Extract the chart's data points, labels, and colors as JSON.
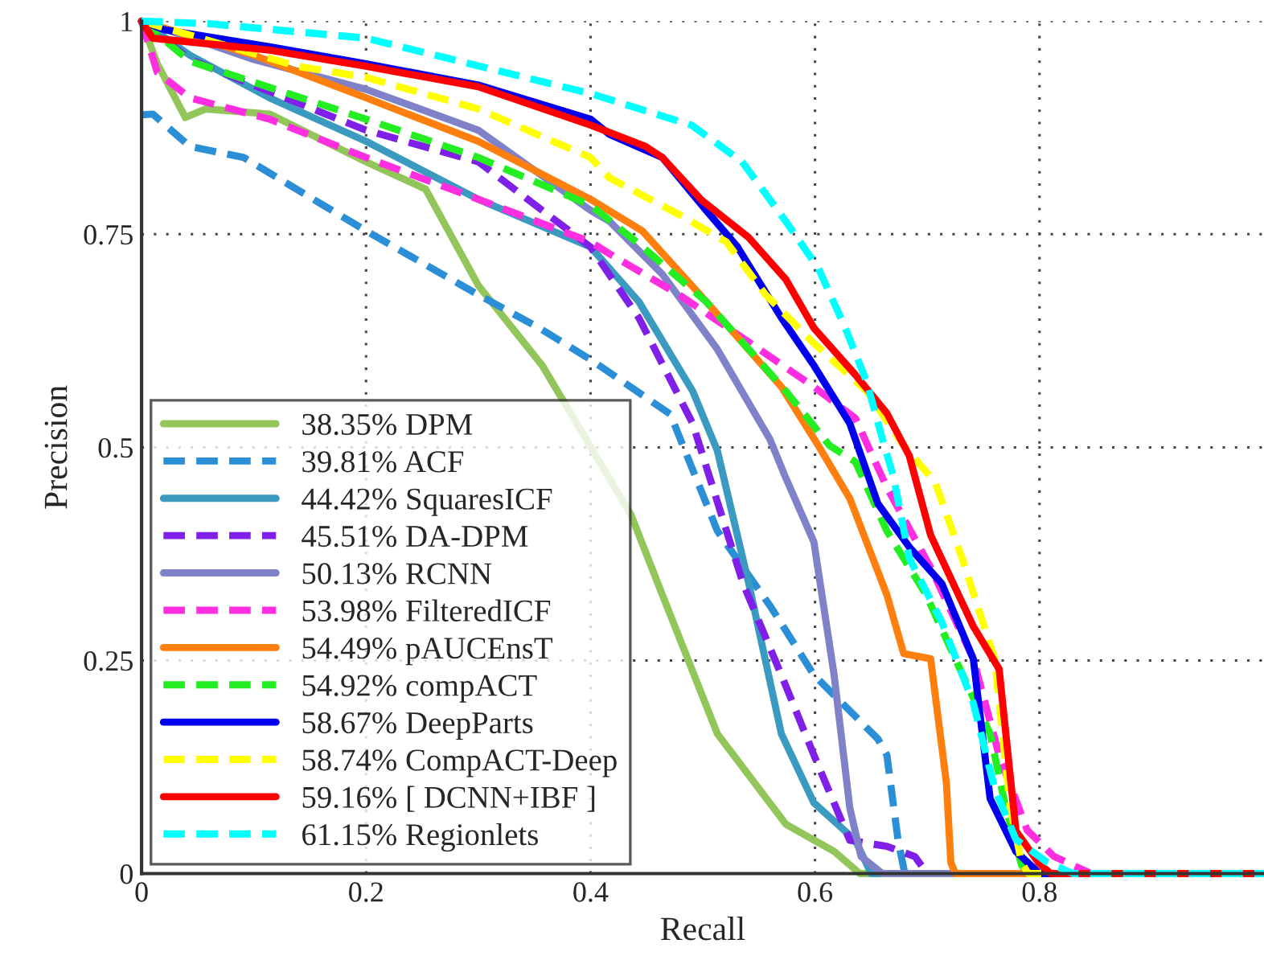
{
  "chart_data": {
    "type": "line",
    "xlabel": "Recall",
    "ylabel": "Precision",
    "xlim": [
      0,
      1
    ],
    "xticks": [
      0,
      0.2,
      0.4,
      0.6,
      0.8
    ],
    "ylim": [
      0,
      1
    ],
    "yticks": [
      0,
      0.25,
      0.5,
      0.75,
      1
    ],
    "grid": true,
    "legend": "bottom left",
    "marker": "none",
    "series": [
      {
        "name": "38.35% DPM",
        "color": "#92c65a",
        "line_style": "solid",
        "x": [
          0,
          0.014,
          0.039,
          0.057,
          0.114,
          0.2,
          0.253,
          0.3,
          0.357,
          0.436,
          0.464,
          0.513,
          0.574,
          0.617,
          0.64,
          1
        ],
        "values": [
          1,
          0.95,
          0.887,
          0.897,
          0.891,
          0.835,
          0.803,
          0.69,
          0.596,
          0.421,
          0.327,
          0.164,
          0.058,
          0.026,
          0,
          0
        ]
      },
      {
        "name": "39.81% ACF",
        "color": "#2b8fd8",
        "line_style": "dashed",
        "x": [
          0,
          0.01,
          0.043,
          0.091,
          0.2,
          0.3,
          0.353,
          0.4,
          0.471,
          0.513,
          0.56,
          0.599,
          0.656,
          0.664,
          0.674,
          0.68,
          1
        ],
        "values": [
          0.89,
          0.891,
          0.853,
          0.84,
          0.754,
          0.679,
          0.641,
          0.603,
          0.539,
          0.402,
          0.314,
          0.233,
          0.158,
          0.139,
          0.039,
          0,
          0
        ]
      },
      {
        "name": "44.42% SquaresICF",
        "color": "#3b9ac0",
        "line_style": "solid",
        "x": [
          0,
          0.043,
          0.114,
          0.2,
          0.3,
          0.4,
          0.443,
          0.491,
          0.513,
          0.541,
          0.57,
          0.599,
          0.636,
          0.65,
          1
        ],
        "values": [
          1,
          0.96,
          0.91,
          0.859,
          0.791,
          0.735,
          0.671,
          0.566,
          0.496,
          0.34,
          0.164,
          0.083,
          0.039,
          0,
          0
        ]
      },
      {
        "name": "45.51% DA-DPM",
        "color": "#7f1fe8",
        "line_style": "dashed",
        "x": [
          0,
          0.043,
          0.2,
          0.3,
          0.4,
          0.443,
          0.491,
          0.536,
          0.57,
          0.599,
          0.631,
          0.664,
          0.689,
          0.7,
          1
        ],
        "values": [
          1,
          0.955,
          0.872,
          0.835,
          0.735,
          0.652,
          0.528,
          0.34,
          0.233,
          0.139,
          0.039,
          0.032,
          0.02,
          0,
          0
        ]
      },
      {
        "name": "50.13% RCNN",
        "color": "#7f82c8",
        "line_style": "solid",
        "x": [
          0,
          0.1,
          0.2,
          0.3,
          0.4,
          0.417,
          0.464,
          0.513,
          0.56,
          0.574,
          0.599,
          0.617,
          0.631,
          0.641,
          0.66,
          1
        ],
        "values": [
          1,
          0.955,
          0.92,
          0.872,
          0.778,
          0.765,
          0.703,
          0.615,
          0.509,
          0.464,
          0.389,
          0.233,
          0.077,
          0.02,
          0,
          0
        ]
      },
      {
        "name": "53.98% FilteredICF",
        "color": "#ff2ee0",
        "line_style": "dashed",
        "x": [
          0,
          0.014,
          0.043,
          0.114,
          0.2,
          0.3,
          0.4,
          0.417,
          0.479,
          0.536,
          0.599,
          0.636,
          0.664,
          0.703,
          0.741,
          0.764,
          0.789,
          0.813,
          0.846,
          1
        ],
        "values": [
          1,
          0.94,
          0.91,
          0.885,
          0.84,
          0.791,
          0.741,
          0.727,
          0.679,
          0.628,
          0.571,
          0.534,
          0.453,
          0.359,
          0.252,
          0.139,
          0.051,
          0.02,
          0,
          0
        ]
      },
      {
        "name": "54.49% pAUCEnsT",
        "color": "#ff7f0e",
        "line_style": "solid",
        "x": [
          0,
          0.1,
          0.2,
          0.3,
          0.4,
          0.446,
          0.503,
          0.57,
          0.603,
          0.631,
          0.664,
          0.679,
          0.703,
          0.717,
          0.721,
          0.725,
          1
        ],
        "values": [
          1,
          0.96,
          0.91,
          0.859,
          0.791,
          0.754,
          0.671,
          0.571,
          0.502,
          0.44,
          0.327,
          0.258,
          0.252,
          0.107,
          0.013,
          0,
          0
        ]
      },
      {
        "name": "54.92% compACT",
        "color": "#22ee22",
        "line_style": "dashed",
        "x": [
          0,
          0.043,
          0.2,
          0.3,
          0.4,
          0.441,
          0.503,
          0.541,
          0.574,
          0.613,
          0.636,
          0.664,
          0.699,
          0.727,
          0.756,
          0.77,
          0.784,
          0.79,
          1
        ],
        "values": [
          1,
          0.953,
          0.885,
          0.84,
          0.784,
          0.741,
          0.671,
          0.615,
          0.566,
          0.502,
          0.483,
          0.402,
          0.327,
          0.246,
          0.164,
          0.077,
          0.01,
          0,
          0
        ]
      },
      {
        "name": "58.67% DeepParts",
        "color": "#0000ee",
        "line_style": "solid",
        "x": [
          0,
          0.02,
          0.114,
          0.2,
          0.3,
          0.4,
          0.417,
          0.464,
          0.503,
          0.531,
          0.57,
          0.599,
          0.631,
          0.656,
          0.684,
          0.713,
          0.741,
          0.756,
          0.779,
          0.8,
          1
        ],
        "values": [
          1,
          0.99,
          0.97,
          0.95,
          0.925,
          0.885,
          0.867,
          0.84,
          0.778,
          0.735,
          0.652,
          0.596,
          0.528,
          0.434,
          0.383,
          0.34,
          0.252,
          0.088,
          0.026,
          0,
          0
        ]
      },
      {
        "name": "58.74% CompACT-Deep",
        "color": "#ffff00",
        "line_style": "dashed",
        "x": [
          0,
          0.139,
          0.2,
          0.3,
          0.4,
          0.417,
          0.479,
          0.521,
          0.556,
          0.599,
          0.646,
          0.679,
          0.707,
          0.731,
          0.76,
          0.774,
          0.784,
          0.79,
          1
        ],
        "values": [
          1,
          0.947,
          0.934,
          0.897,
          0.84,
          0.816,
          0.773,
          0.741,
          0.679,
          0.622,
          0.566,
          0.502,
          0.459,
          0.37,
          0.252,
          0.077,
          0.013,
          0,
          0
        ]
      },
      {
        "name": "59.16% [ DCNN+IBF ]",
        "color": "#ff0000",
        "line_style": "solid",
        "x": [
          0,
          0.01,
          0.114,
          0.2,
          0.3,
          0.4,
          0.449,
          0.464,
          0.499,
          0.541,
          0.574,
          0.599,
          0.636,
          0.664,
          0.684,
          0.703,
          0.741,
          0.764,
          0.779,
          0.799,
          0.81,
          1
        ],
        "values": [
          1,
          0.98,
          0.966,
          0.947,
          0.923,
          0.878,
          0.853,
          0.84,
          0.79,
          0.746,
          0.697,
          0.64,
          0.585,
          0.54,
          0.49,
          0.397,
          0.29,
          0.24,
          0.05,
          0.013,
          0,
          0
        ]
      },
      {
        "name": "61.15% Regionlets",
        "color": "#00ffff",
        "line_style": "dashed",
        "x": [
          0,
          0.06,
          0.2,
          0.4,
          0.49,
          0.535,
          0.574,
          0.603,
          0.627,
          0.646,
          0.66,
          0.67,
          0.684,
          0.713,
          0.741,
          0.76,
          0.779,
          0.807,
          0.83,
          1
        ],
        "values": [
          1,
          0.997,
          0.98,
          0.915,
          0.878,
          0.835,
          0.765,
          0.71,
          0.64,
          0.577,
          0.51,
          0.465,
          0.37,
          0.295,
          0.2,
          0.1,
          0.04,
          0.013,
          0,
          0
        ]
      }
    ]
  }
}
